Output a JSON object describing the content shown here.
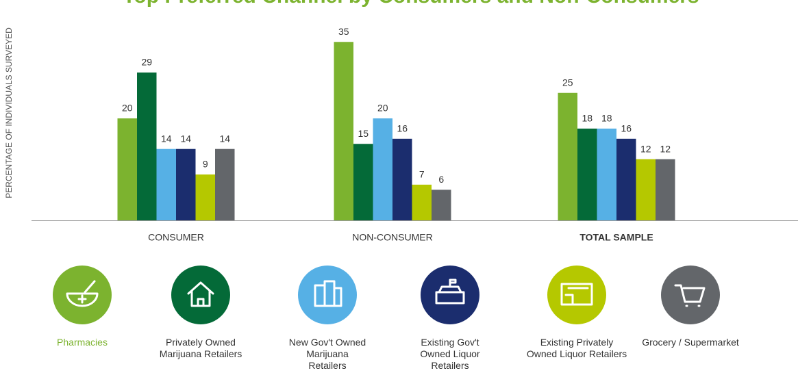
{
  "chart_data": {
    "type": "bar",
    "title": "Top Preferred Channel by Consumers and Non-Consumers",
    "y_label": "PERCENTAGE OF INDIVIDUALS SURVEYED",
    "categories": [
      "CONSUMER",
      "NON-CONSUMER",
      "TOTAL SAMPLE"
    ],
    "series": [
      {
        "name": "Pharmacies",
        "color": "#7cb32f",
        "values": [
          20,
          35,
          25
        ]
      },
      {
        "name": "Privately Owned Marijuana Retailers",
        "color": "#046a38",
        "values": [
          29,
          15,
          18
        ]
      },
      {
        "name": "New Gov't Owned Marijuana Retailers",
        "color": "#56b0e5",
        "values": [
          14,
          20,
          18
        ]
      },
      {
        "name": "Existing Gov't Owned Liquor Retailers",
        "color": "#1b2d6e",
        "values": [
          14,
          16,
          16
        ]
      },
      {
        "name": "Existing Privately Owned Liquor Retailers",
        "color": "#b5c800",
        "values": [
          9,
          7,
          12
        ]
      },
      {
        "name": "Grocery / Supermarket",
        "color": "#63666a",
        "values": [
          14,
          6,
          12
        ]
      }
    ],
    "ylim": [
      0,
      40
    ]
  }
}
